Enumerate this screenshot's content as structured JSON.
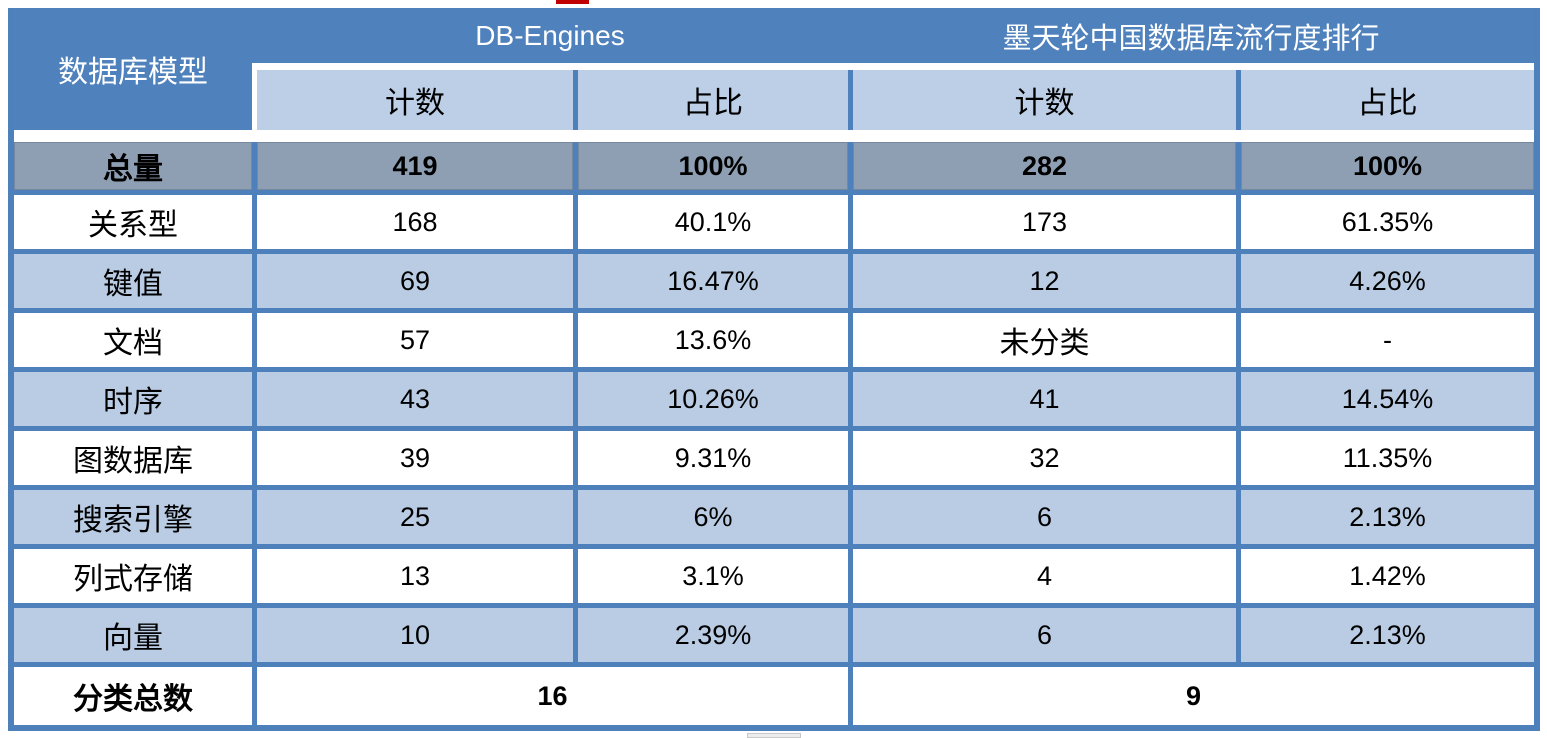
{
  "colors": {
    "header_blue": "#4f81bd",
    "subheader_blue": "#bccfe6",
    "row_light_blue": "#b9cce4",
    "total_row_gray": "#8f9fb3",
    "border_blue": "#4e80bc",
    "artifact_red": "#c00000"
  },
  "chart_data": {
    "type": "table",
    "header": {
      "model_col": "数据库模型",
      "source1": "DB-Engines",
      "source2": "墨天轮中国数据库流行度排行",
      "count_label": "计数",
      "share_label": "占比"
    },
    "rows": [
      {
        "id": "total",
        "label": "总量",
        "db_count": "419",
        "db_share": "100%",
        "mt_count": "282",
        "mt_share": "100%"
      },
      {
        "id": "relational",
        "label": "关系型",
        "db_count": "168",
        "db_share": "40.1%",
        "mt_count": "173",
        "mt_share": "61.35%"
      },
      {
        "id": "key-value",
        "label": "键值",
        "db_count": "69",
        "db_share": "16.47%",
        "mt_count": "12",
        "mt_share": "4.26%"
      },
      {
        "id": "document",
        "label": "文档",
        "db_count": "57",
        "db_share": "13.6%",
        "mt_count": "未分类",
        "mt_share": "-"
      },
      {
        "id": "time-series",
        "label": "时序",
        "db_count": "43",
        "db_share": "10.26%",
        "mt_count": "41",
        "mt_share": "14.54%"
      },
      {
        "id": "graph",
        "label": "图数据库",
        "db_count": "39",
        "db_share": "9.31%",
        "mt_count": "32",
        "mt_share": "11.35%"
      },
      {
        "id": "search-engine",
        "label": "搜索引擎",
        "db_count": "25",
        "db_share": "6%",
        "mt_count": "6",
        "mt_share": "2.13%"
      },
      {
        "id": "columnar",
        "label": "列式存储",
        "db_count": "13",
        "db_share": "3.1%",
        "mt_count": "4",
        "mt_share": "1.42%"
      },
      {
        "id": "vector",
        "label": "向量",
        "db_count": "10",
        "db_share": "2.39%",
        "mt_count": "6",
        "mt_share": "2.13%"
      }
    ],
    "footer": {
      "label": "分类总数",
      "db_total": "16",
      "mt_total": "9"
    }
  }
}
